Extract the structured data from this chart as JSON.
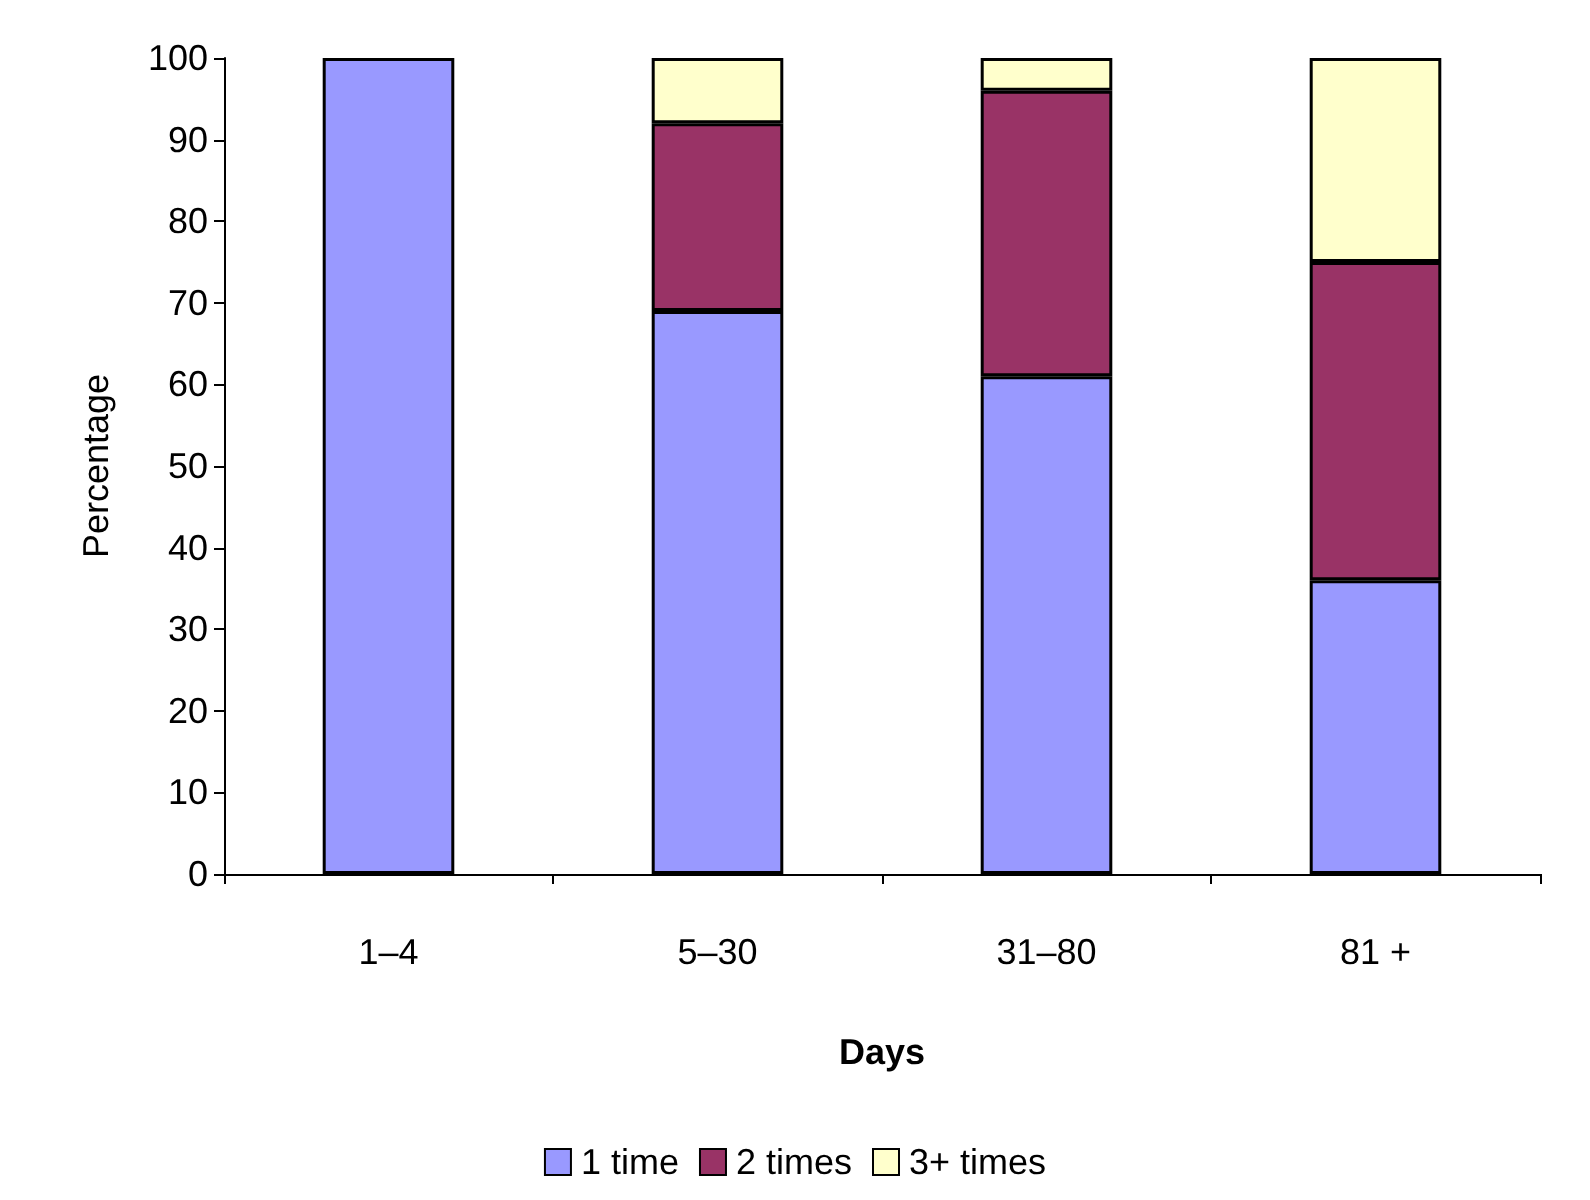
{
  "chart_data": {
    "type": "bar",
    "stacked": true,
    "xlabel": "Days",
    "ylabel": "Percentage",
    "categories": [
      "1–4",
      "5–30",
      "31–80",
      "81 +"
    ],
    "series": [
      {
        "name": "1 time",
        "color": "#9999ff",
        "values": [
          100,
          69,
          61,
          36
        ]
      },
      {
        "name": "2 times",
        "color": "#993366",
        "values": [
          null,
          23,
          35,
          39
        ]
      },
      {
        "name": "3+ times",
        "color": "#ffffcc",
        "values": [
          null,
          8,
          4,
          25
        ]
      }
    ],
    "ylim": [
      0,
      100
    ],
    "yticks": [
      0,
      10,
      20,
      30,
      40,
      50,
      60,
      70,
      80,
      90,
      100
    ],
    "grid": false,
    "legend": "bottom"
  }
}
